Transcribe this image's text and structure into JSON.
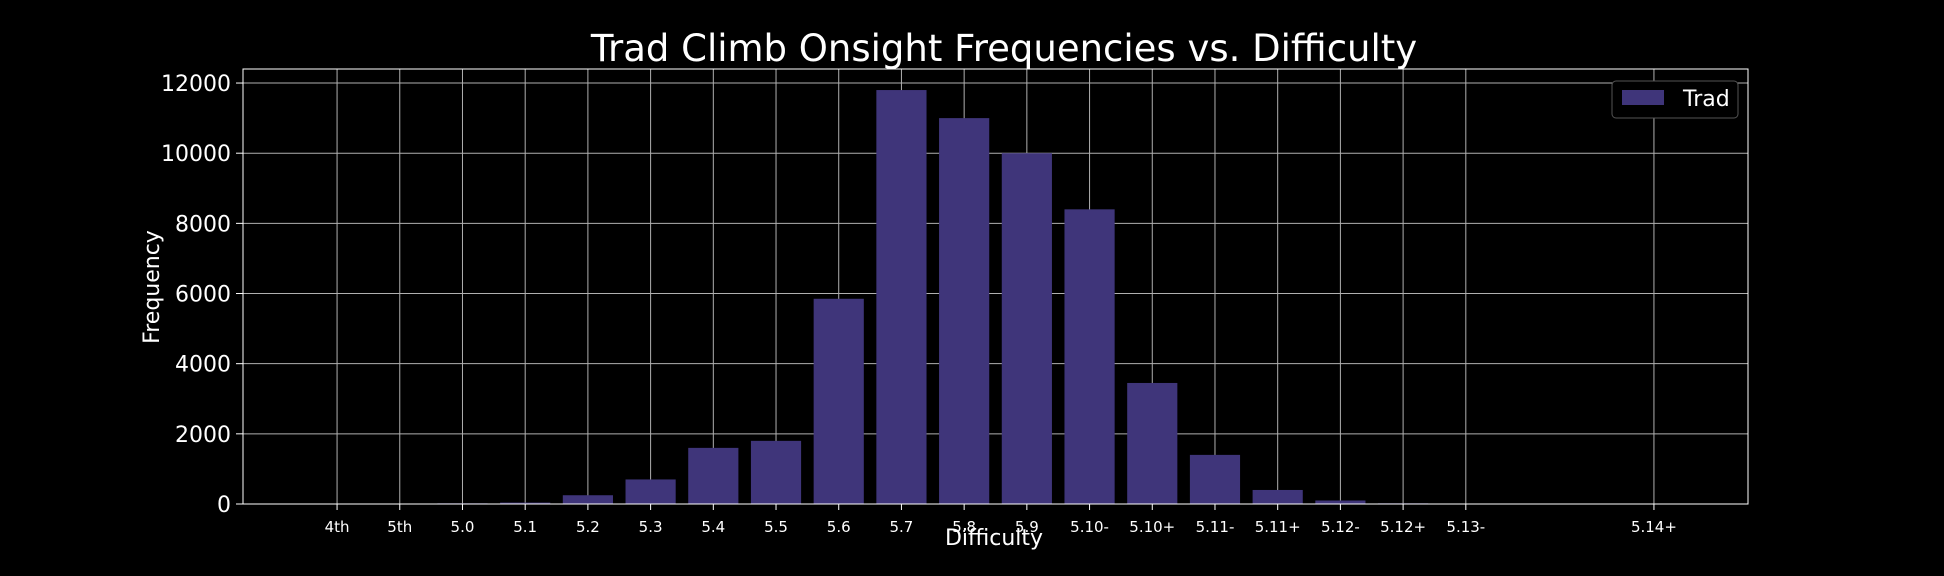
{
  "chart_data": {
    "type": "bar",
    "title": "Trad Climb Onsight Frequencies vs. Difficulty",
    "xlabel": "Difficulty",
    "ylabel": "Frequency",
    "categories": [
      "4th",
      "5th",
      "5.0",
      "5.1",
      "5.2",
      "5.3",
      "5.4",
      "5.5",
      "5.6",
      "5.7",
      "5.8",
      "5.9",
      "5.10-",
      "5.10+",
      "5.11-",
      "5.11+",
      "5.12-",
      "5.12+",
      "5.13-",
      "5.14+"
    ],
    "category_positions": [
      0,
      1,
      2,
      3,
      4,
      5,
      6,
      7,
      8,
      9,
      10,
      11,
      12,
      13,
      14,
      15,
      16,
      17,
      18,
      21
    ],
    "series": [
      {
        "name": "Trad",
        "values": [
          5,
          10,
          20,
          40,
          250,
          700,
          1600,
          1800,
          5850,
          11800,
          11000,
          10000,
          8400,
          3450,
          1400,
          400,
          100,
          20,
          5,
          0
        ],
        "color": "#3f357a"
      }
    ],
    "ylim": [
      0,
      12400
    ],
    "yticks": [
      0,
      2000,
      4000,
      6000,
      8000,
      10000,
      12000
    ],
    "grid": true,
    "legend": "top-right",
    "background": "#000000",
    "foreground": "#ffffff",
    "grid_color": "#b0b0b0"
  }
}
